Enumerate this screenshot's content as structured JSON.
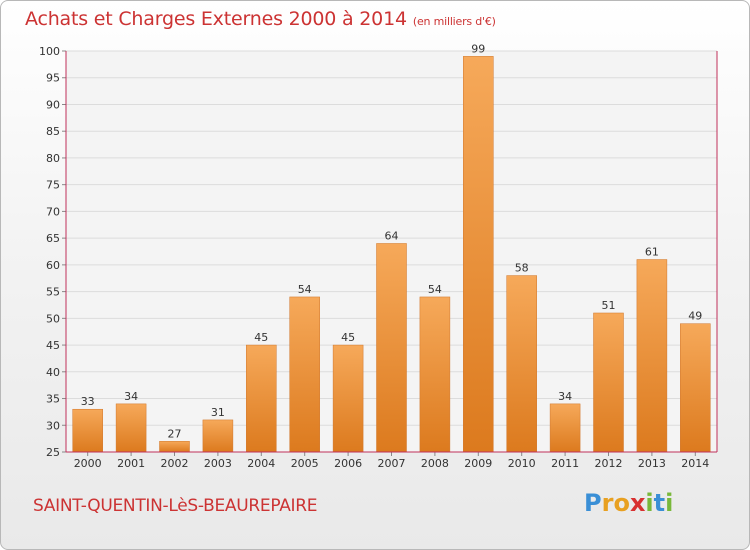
{
  "title": "Achats et Charges Externes 2000 à 2014",
  "subtitle": "(en milliers d'€)",
  "commune": "SAINT-QUENTIN-LèS-BEAUREPAIRE",
  "logo": {
    "letters": [
      "P",
      "r",
      "o",
      "x",
      "i",
      "t",
      "i"
    ],
    "colors": [
      "#3a8fd6",
      "#e8a020",
      "#e8a020",
      "#d83030",
      "#79b83a",
      "#3a8fd6",
      "#79b83a"
    ]
  },
  "colors": {
    "bar_light": "#f6a95a",
    "bar_dark": "#dc7a1e",
    "accent": "#cc3333",
    "axis": "#c0305a"
  },
  "chart_data": {
    "type": "bar",
    "categories": [
      "2000",
      "2001",
      "2002",
      "2003",
      "2004",
      "2005",
      "2006",
      "2007",
      "2008",
      "2009",
      "2010",
      "2011",
      "2012",
      "2013",
      "2014"
    ],
    "values": [
      33,
      34,
      27,
      31,
      45,
      54,
      45,
      64,
      54,
      99,
      58,
      34,
      51,
      61,
      49
    ],
    "ylim": [
      25,
      100
    ],
    "yticks": [
      25,
      30,
      35,
      40,
      45,
      50,
      55,
      60,
      65,
      70,
      75,
      80,
      85,
      90,
      95,
      100
    ],
    "grid": true,
    "xlabel": "",
    "ylabel": ""
  }
}
